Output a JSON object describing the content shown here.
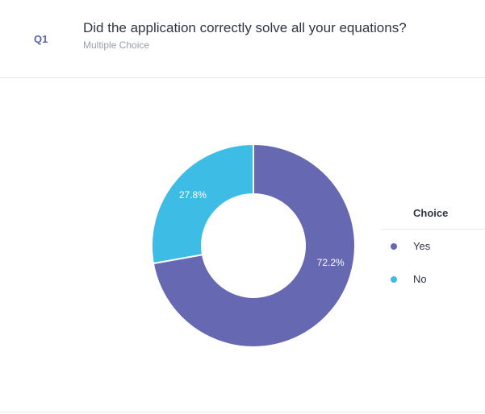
{
  "question": {
    "number": "Q1",
    "title": "Did the application correctly solve all your equations?",
    "type": "Multiple Choice"
  },
  "chart_data": {
    "type": "pie",
    "variant": "donut",
    "title": "Did the application correctly solve all your equations?",
    "legend_title": "Choice",
    "legend_position": "right",
    "categories": [
      "Yes",
      "No"
    ],
    "values": [
      72.2,
      27.8
    ],
    "data_labels": [
      "72.2%",
      "27.8%"
    ],
    "colors": [
      "#6668b1",
      "#3dbde6"
    ]
  }
}
